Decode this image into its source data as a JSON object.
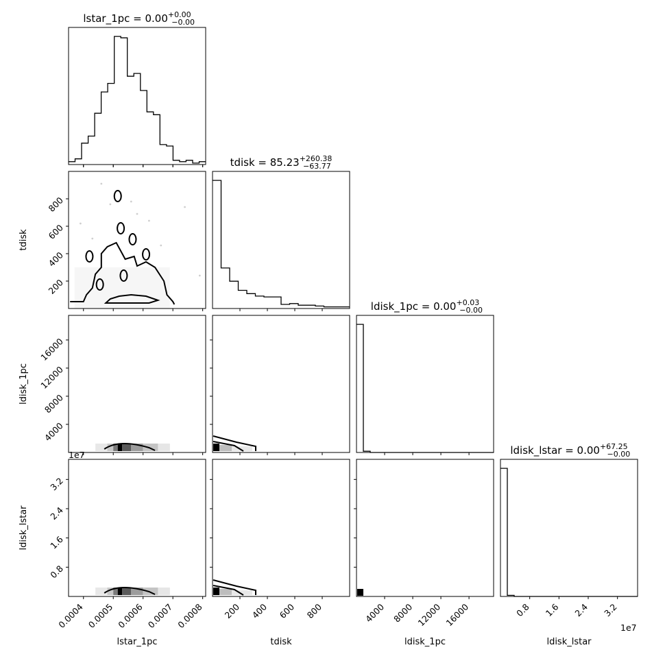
{
  "chart_data": {
    "type": "corner",
    "parameters": [
      "lstar_1pc",
      "tdisk",
      "ldisk_1pc",
      "ldisk_lstar"
    ],
    "titles": [
      {
        "prefix": "lstar_1pc = 0.00",
        "sup": "+0.00",
        "sub": "−0.00"
      },
      {
        "prefix": "tdisk = 85.23",
        "sup": "+260.38",
        "sub": "−63.77"
      },
      {
        "prefix": "ldisk_1pc = 0.00",
        "sup": "+0.03",
        "sub": "−0.00"
      },
      {
        "prefix": "ldisk_lstar = 0.00",
        "sup": "+67.25",
        "sub": "−0.00"
      }
    ],
    "axes": {
      "lstar_1pc": {
        "range": [
          0.00035,
          0.00081
        ],
        "ticks": [
          0.0004,
          0.0005,
          0.0006,
          0.0007,
          0.0008
        ],
        "tick_labels": [
          "0.0004",
          "0.0005",
          "0.0006",
          "0.0007",
          "0.0008"
        ]
      },
      "tdisk": {
        "range": [
          0,
          1000
        ],
        "ticks": [
          200,
          400,
          600,
          800
        ],
        "tick_labels": [
          "200",
          "400",
          "600",
          "800"
        ]
      },
      "ldisk_1pc": {
        "range": [
          0,
          19500
        ],
        "ticks": [
          4000,
          8000,
          12000,
          16000
        ],
        "tick_labels": [
          "4000",
          "8000",
          "12000",
          "16000"
        ]
      },
      "ldisk_lstar": {
        "range": [
          0,
          37500000
        ],
        "ticks": [
          8000000,
          16000000,
          24000000,
          32000000
        ],
        "tick_labels": [
          "0.8",
          "1.6",
          "2.4",
          "3.2"
        ],
        "offset_label": "1e7"
      }
    },
    "histograms": {
      "lstar_1pc": [
        2,
        4,
        15,
        20,
        36,
        51,
        57,
        90,
        89,
        62,
        64,
        52,
        37,
        35,
        14,
        13,
        3,
        2,
        3,
        1,
        2
      ],
      "tdisk": [
        155,
        49,
        33,
        22,
        18,
        15,
        14,
        14,
        5,
        6,
        4,
        4,
        3,
        2,
        2,
        2
      ],
      "ldisk_1pc": [
        26,
        0.25,
        0,
        0,
        0,
        0,
        0,
        0,
        0,
        0,
        0,
        0,
        0,
        0,
        0,
        0,
        0,
        0,
        0,
        0
      ],
      "ldisk_lstar": [
        26,
        0.22,
        0,
        0,
        0,
        0,
        0,
        0,
        0,
        0,
        0,
        0,
        0,
        0,
        0,
        0,
        0,
        0,
        0,
        0
      ]
    },
    "contours": {
      "tdisk_vs_lstar_1pc": {
        "outer": [
          [
            0.000355,
            50
          ],
          [
            0.0004,
            50
          ],
          [
            0.00041,
            100
          ],
          [
            0.00043,
            150
          ],
          [
            0.00044,
            250
          ],
          [
            0.00046,
            300
          ],
          [
            0.00046,
            400
          ],
          [
            0.00048,
            450
          ],
          [
            0.00051,
            480
          ],
          [
            0.00053,
            400
          ],
          [
            0.00054,
            360
          ],
          [
            0.00057,
            380
          ],
          [
            0.00058,
            310
          ],
          [
            0.00061,
            340
          ],
          [
            0.00064,
            300
          ],
          [
            0.00067,
            200
          ],
          [
            0.00068,
            100
          ],
          [
            0.0007,
            50
          ],
          [
            0.000705,
            30
          ]
        ],
        "inner": [
          [
            0.000475,
            40
          ],
          [
            0.00049,
            70
          ],
          [
            0.00052,
            90
          ],
          [
            0.00056,
            100
          ],
          [
            0.00061,
            90
          ],
          [
            0.00065,
            60
          ],
          [
            0.00062,
            40
          ]
        ],
        "islands": [
          {
            "cx": 0.00042,
            "cy": 380
          },
          {
            "cx": 0.000525,
            "cy": 585
          },
          {
            "cx": 0.000565,
            "cy": 505
          },
          {
            "cx": 0.00061,
            "cy": 395
          },
          {
            "cx": 0.000455,
            "cy": 175
          },
          {
            "cx": 0.000515,
            "cy": 820
          },
          {
            "cx": 0.000535,
            "cy": 240
          }
        ]
      }
    }
  }
}
